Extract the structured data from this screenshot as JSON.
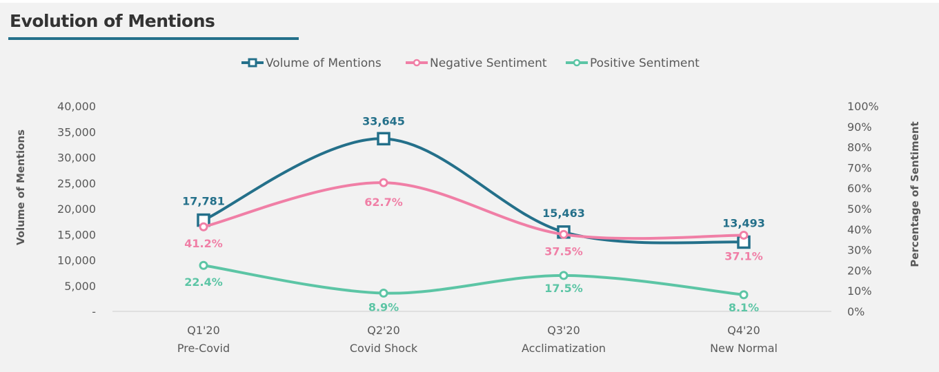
{
  "title": "Evolution of Mentions",
  "chart_data": {
    "type": "line",
    "categories": [
      [
        "Q1'20",
        "Pre-Covid"
      ],
      [
        "Q2'20",
        "Covid Shock"
      ],
      [
        "Q3'20",
        "Acclimatization"
      ],
      [
        "Q4'20",
        "New Normal"
      ]
    ],
    "series": [
      {
        "name": "Volume of Mentions",
        "axis": "left",
        "values": [
          17781,
          33645,
          15463,
          13493
        ],
        "labels": [
          "17,781",
          "33,645",
          "15,463",
          "13,493"
        ],
        "color": "#24708a",
        "marker": "square"
      },
      {
        "name": "Negative Sentiment",
        "axis": "right",
        "values": [
          41.2,
          62.7,
          37.5,
          37.1
        ],
        "labels": [
          "41.2%",
          "62.7%",
          "37.5%",
          "37.1%"
        ],
        "color": "#f07fa6",
        "marker": "circle"
      },
      {
        "name": "Positive Sentiment",
        "axis": "right",
        "values": [
          22.4,
          8.9,
          17.5,
          8.1
        ],
        "labels": [
          "22.4%",
          "8.9%",
          "17.5%",
          "8.1%"
        ],
        "color": "#5cc5a5",
        "marker": "circle"
      }
    ],
    "ylabel": "Volume of Mentions",
    "y2label": "Percentage of Sentiment",
    "ylim": [
      0,
      40000
    ],
    "y2lim": [
      0,
      100
    ],
    "yticks": [
      "-",
      "5,000",
      "10,000",
      "15,000",
      "20,000",
      "25,000",
      "30,000",
      "35,000",
      "40,000"
    ],
    "y2ticks": [
      "0%",
      "10%",
      "20%",
      "30%",
      "40%",
      "50%",
      "60%",
      "70%",
      "80%",
      "90%",
      "100%"
    ],
    "legend": "top",
    "grid": false,
    "smooth": true
  }
}
